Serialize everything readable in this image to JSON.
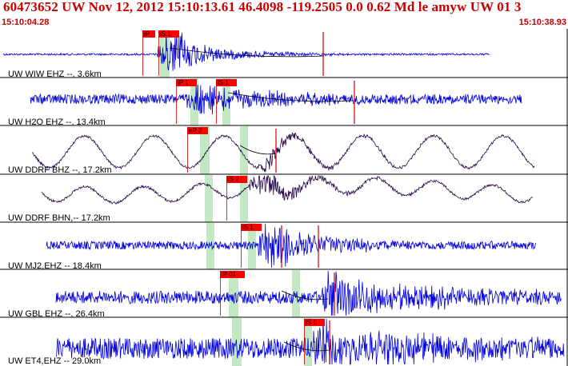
{
  "header": {
    "title": "60473652 UW Nov 12, 2012 15:10:13.61   46.4098 -119.2505  0.0 0.62 Md le amyw UW 01   3",
    "time_start": "15:10:04.28",
    "time_end": "15:10:38.93"
  },
  "colors": {
    "header_text": "#c80000",
    "trace_short_period": "#0000e0",
    "trace_broadband": "#2a0a4a",
    "pick_flag": "#ff0000",
    "pick_line": "#d00000",
    "coda_window": "#c4e8c4",
    "separator": "#000000"
  },
  "channels": [
    {
      "label": "UW WIW EHZ --, 3.6km",
      "kind": "sp",
      "picks": [
        {
          "text": "iP"
        },
        {
          "text": "iS 1"
        }
      ]
    },
    {
      "label": "UW H2O EHZ --, 13.4km",
      "kind": "sp",
      "picks": [
        {
          "text": "iP 1"
        },
        {
          "text": "iS 1"
        }
      ]
    },
    {
      "label": "UW DDRF BHZ --, 17.2km",
      "kind": "bb",
      "picks": [
        {
          "text": "eP 2"
        }
      ]
    },
    {
      "label": "UW DDRF BHN,-- 17.2km",
      "kind": "bb",
      "picks": [
        {
          "text": "iS 2"
        }
      ]
    },
    {
      "label": "UW MJ2,EHZ -- 18.4km",
      "kind": "sp",
      "picks": [
        {
          "text": "iS 1"
        }
      ]
    },
    {
      "label": "UW GBL EHZ --, 26.4km",
      "kind": "sp",
      "picks": [
        {
          "text": "iP 01"
        }
      ]
    },
    {
      "label": "UW ET4,EHZ -- 29.0km",
      "kind": "sp",
      "picks": [
        {
          "text": "iS 1"
        }
      ]
    }
  ]
}
